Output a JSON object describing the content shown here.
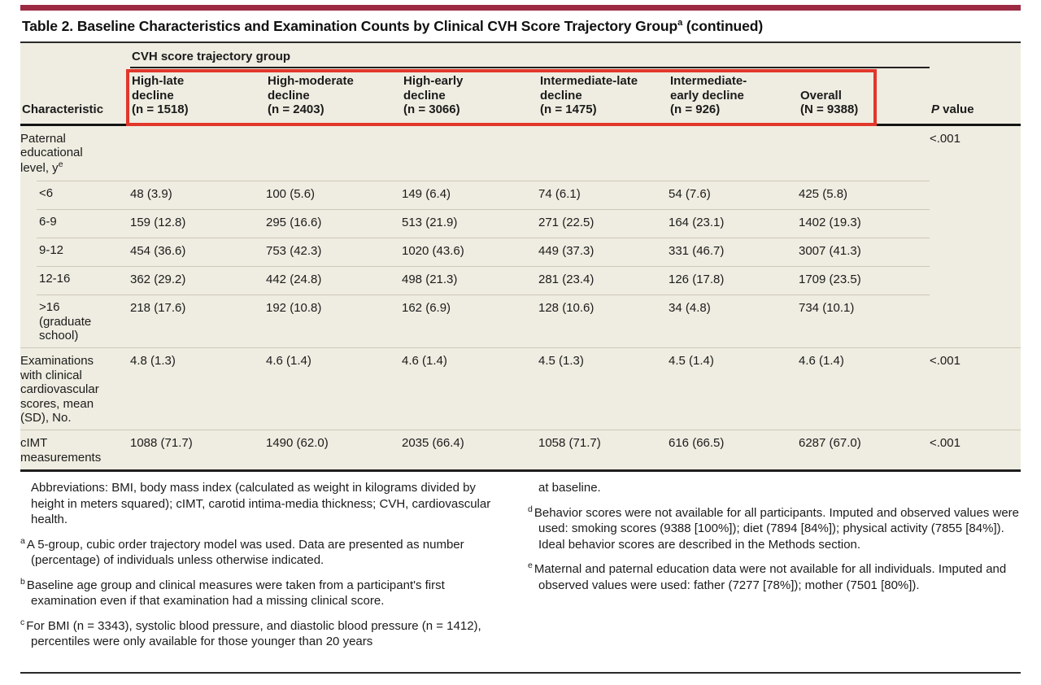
{
  "title": {
    "main": "Table 2. Baseline Characteristics and Examination Counts by Clinical CVH Score Trajectory Group",
    "sup": "a",
    "suffix": " (continued)"
  },
  "table": {
    "spanner": "CVH score trajectory group",
    "characteristic_header": "Characteristic",
    "p_header_italic": "P",
    "p_header_rest": " value",
    "groups": [
      {
        "label": "High-late\ndecline",
        "n": "(n = 1518)"
      },
      {
        "label": "High-moderate\ndecline",
        "n": "(n = 2403)"
      },
      {
        "label": "High-early\ndecline",
        "n": "(n = 3066)"
      },
      {
        "label": "Intermediate-late\ndecline",
        "n": "(n = 1475)"
      },
      {
        "label": "Intermediate-\nearly decline",
        "n": "(n = 926)"
      },
      {
        "label": "Overall",
        "n": "(N = 9388)"
      }
    ],
    "section": {
      "label": "Paternal\neducational\nlevel, y",
      "sup": "e",
      "p": "<.001",
      "rows": [
        {
          "label": "<6",
          "cells": [
            "48 (3.9)",
            "100 (5.6)",
            "149 (6.4)",
            "74 (6.1)",
            "54 (7.6)",
            "425 (5.8)"
          ]
        },
        {
          "label": "6-9",
          "cells": [
            "159 (12.8)",
            "295 (16.6)",
            "513 (21.9)",
            "271 (22.5)",
            "164 (23.1)",
            "1402 (19.3)"
          ]
        },
        {
          "label": "9-12",
          "cells": [
            "454 (36.6)",
            "753 (42.3)",
            "1020 (43.6)",
            "449 (37.3)",
            "331 (46.7)",
            "3007 (41.3)"
          ]
        },
        {
          "label": "12-16",
          "cells": [
            "362 (29.2)",
            "442 (24.8)",
            "498 (21.3)",
            "281 (23.4)",
            "126 (17.8)",
            "1709 (23.5)"
          ]
        },
        {
          "label": ">16\n(graduate\nschool)",
          "cells": [
            "218 (17.6)",
            "192 (10.8)",
            "162 (6.9)",
            "128 (10.6)",
            "34 (4.8)",
            "734 (10.1)"
          ]
        }
      ]
    },
    "items": [
      {
        "label": "Examinations\nwith clinical\ncardiovascular\nscores, mean\n(SD), No.",
        "cells": [
          "4.8 (1.3)",
          "4.6 (1.4)",
          "4.6 (1.4)",
          "4.5 (1.3)",
          "4.5 (1.4)",
          "4.6 (1.4)"
        ],
        "p": "<.001"
      },
      {
        "label": "cIMT\nmeasurements",
        "cells": [
          "1088 (71.7)",
          "1490 (62.0)",
          "2035 (66.4)",
          "1058 (71.7)",
          "616 (66.5)",
          "6287 (67.0)"
        ],
        "p": "<.001"
      }
    ]
  },
  "footnotes": {
    "left": [
      {
        "sup": "",
        "text": "Abbreviations: BMI, body mass index (calculated as weight in kilograms divided by height in meters squared); cIMT, carotid intima-media thickness; CVH, cardiovascular health."
      },
      {
        "sup": "a",
        "text": "A 5-group, cubic order trajectory model was used. Data are presented as number (percentage) of individuals unless otherwise indicated."
      },
      {
        "sup": "b",
        "text": "Baseline age group and clinical measures were taken from a participant's first examination even if that examination had a missing clinical score."
      },
      {
        "sup": "c",
        "text": "For BMI (n = 3343), systolic blood pressure, and diastolic blood pressure (n = 1412), percentiles were only available for those younger than 20 years"
      }
    ],
    "right": [
      {
        "sup": "",
        "text": "at baseline."
      },
      {
        "sup": "d",
        "text": "Behavior scores were not available for all participants. Imputed and observed values were used: smoking scores (9388 [100%]); diet (7894 [84%]); physical activity (7855 [84%]). Ideal behavior scores are described in the Methods section."
      },
      {
        "sup": "e",
        "text": "Maternal and paternal education data were not available for all individuals. Imputed and observed values were used: father (7277 [78%]); mother (7501 [80%])."
      }
    ]
  },
  "colors": {
    "accent_maroon": "#9c2a43",
    "table_background": "#efede1",
    "annotation_red": "#e2372b"
  }
}
